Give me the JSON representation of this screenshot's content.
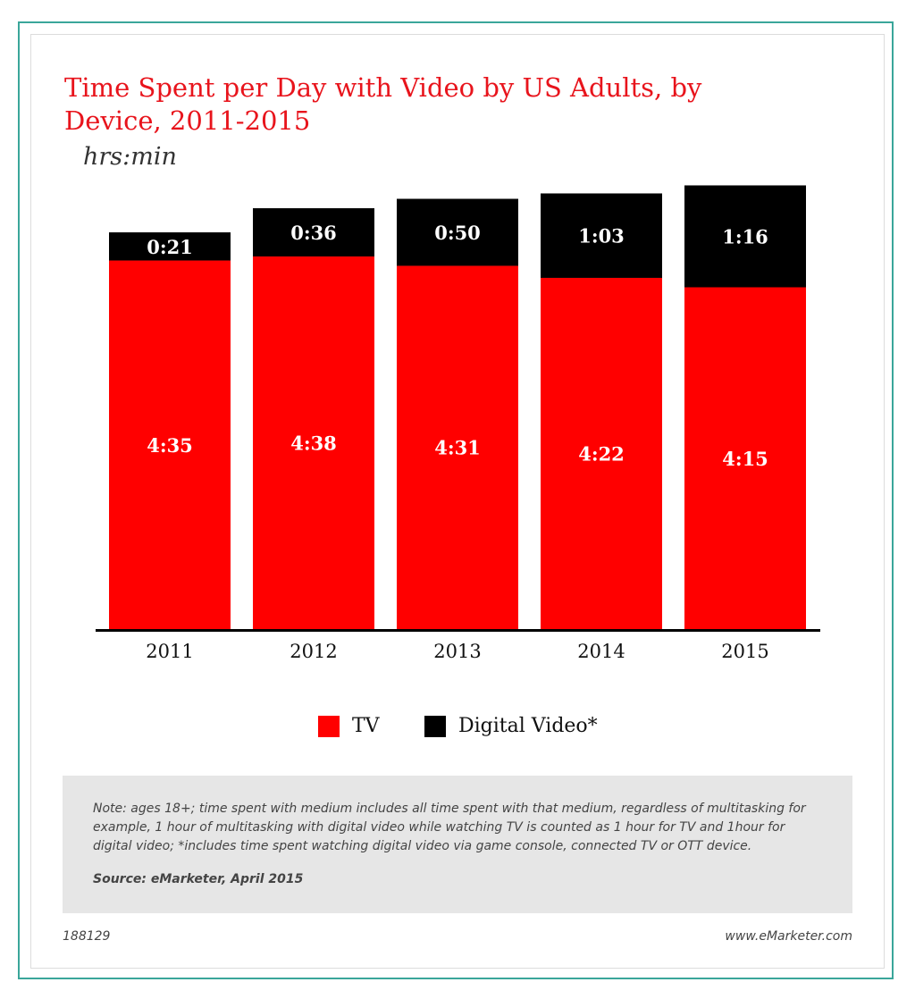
{
  "header": {
    "title": "Time Spent per Day with Video by US Adults, by Device, 2011-2015",
    "subtitle": "hrs:min"
  },
  "colors": {
    "tv": "#ff0000",
    "digital": "#000000",
    "accent": "#e8141c",
    "frame": "#3aa69a"
  },
  "chart_data": {
    "type": "bar",
    "stacked": true,
    "categories": [
      "2011",
      "2012",
      "2013",
      "2014",
      "2015"
    ],
    "series": [
      {
        "name": "TV",
        "values": [
          4.583,
          4.633,
          4.517,
          4.367,
          4.25
        ],
        "labels": [
          "4:35",
          "4:38",
          "4:31",
          "4:22",
          "4:15"
        ]
      },
      {
        "name": "Digital Video*",
        "values": [
          0.35,
          0.6,
          0.833,
          1.05,
          1.267
        ],
        "labels": [
          "0:21",
          "0:36",
          "0:50",
          "1:03",
          "1:16"
        ]
      }
    ],
    "ylim": [
      0,
      5.6
    ],
    "grid": false,
    "legend": "bottom"
  },
  "legend": {
    "tv": "TV",
    "digital": "Digital Video*"
  },
  "notes": {
    "note": "Note: ages 18+; time spent with medium includes all time spent with that medium, regardless of multitasking for example, 1 hour of multitasking with digital video while watching TV is counted as 1 hour for TV and 1hour for digital video; *includes time spent watching digital video via game console, connected TV or OTT device.",
    "source": "Source: eMarketer, April 2015"
  },
  "footer": {
    "id": "188129",
    "site": "www.eMarketer.com"
  }
}
